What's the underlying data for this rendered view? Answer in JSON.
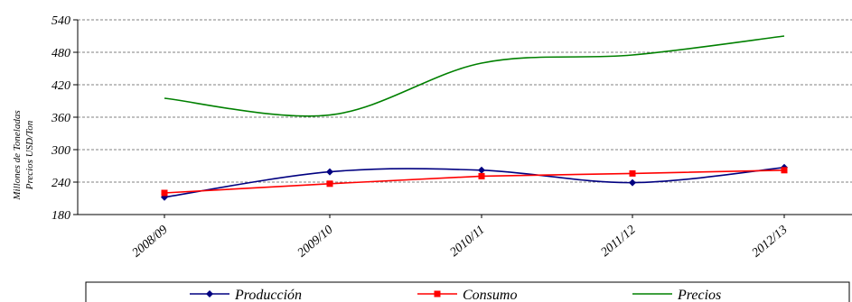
{
  "chart_data": {
    "type": "line",
    "title": "",
    "xlabel": "",
    "ylabel_lines": [
      "Millones de Toneladas",
      "Precios USD/Ton"
    ],
    "categories": [
      "2008/09",
      "2009/10",
      "2010/11",
      "2011/12",
      "2012/13"
    ],
    "ylim": [
      180,
      540
    ],
    "yticks": [
      180,
      240,
      300,
      360,
      420,
      480,
      540
    ],
    "grid": true,
    "legend_position": "bottom",
    "series": [
      {
        "name": "Producción",
        "values": [
          212,
          259,
          262,
          239,
          267
        ],
        "color": "#000080",
        "marker": "diamond",
        "smooth": true
      },
      {
        "name": "Consumo",
        "values": [
          220,
          237,
          251,
          256,
          262
        ],
        "color": "#ff0000",
        "marker": "square",
        "smooth": false
      },
      {
        "name": "Precios",
        "values": [
          395,
          364,
          460,
          475,
          510
        ],
        "color": "#008000",
        "marker": "none",
        "smooth": true
      }
    ]
  }
}
